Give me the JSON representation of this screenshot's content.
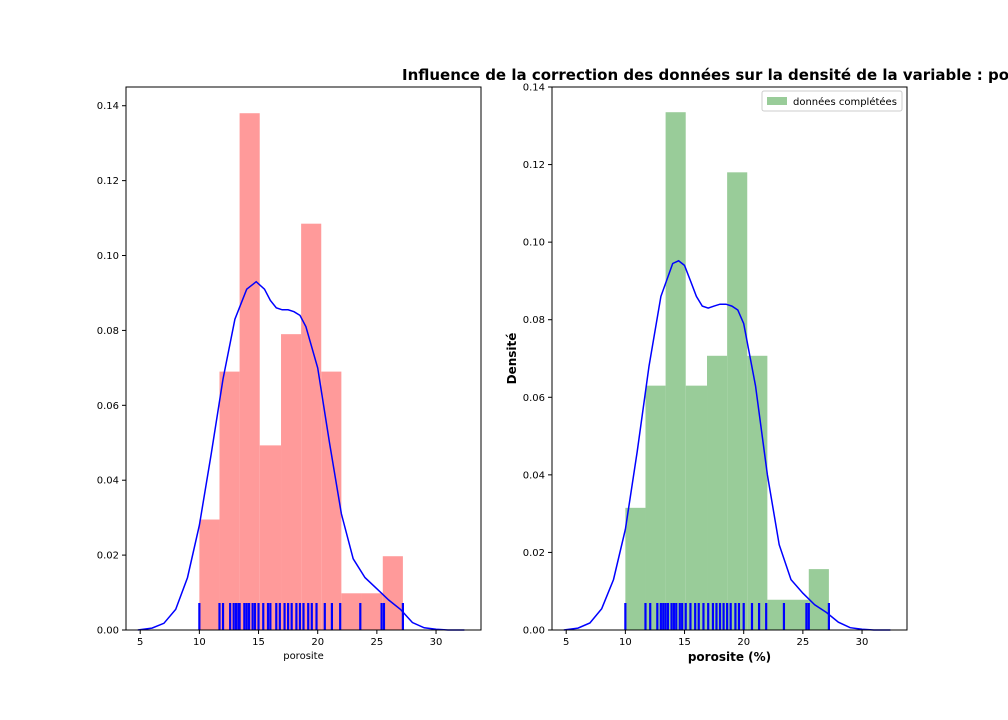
{
  "suptitle": "Influence de la correction des données sur la densité de la variable : po",
  "colors": {
    "rug": "#0000ff",
    "kde": "#0000ff",
    "hist_left": "#ff9a9a",
    "hist_right": "#99cc99",
    "axes": "#000000"
  },
  "chart_data": [
    {
      "type": "histogram+kde+rug",
      "xlabel": "porosite",
      "ylabel": "",
      "xlim": [
        3.8,
        33.8
      ],
      "ylim": [
        0,
        0.145
      ],
      "xticks": [
        "5",
        "10",
        "15",
        "20",
        "25",
        "30"
      ],
      "yticks": [
        "0.00",
        "0.02",
        "0.04",
        "0.06",
        "0.08",
        "0.10",
        "0.12",
        "0.14"
      ],
      "bins": [
        {
          "x0": 10.0,
          "x1": 11.7,
          "value": 0.0295
        },
        {
          "x0": 11.7,
          "x1": 13.4,
          "value": 0.069
        },
        {
          "x0": 13.4,
          "x1": 15.1,
          "value": 0.138
        },
        {
          "x0": 15.1,
          "x1": 16.9,
          "value": 0.0493
        },
        {
          "x0": 16.9,
          "x1": 18.6,
          "value": 0.079
        },
        {
          "x0": 18.6,
          "x1": 20.3,
          "value": 0.1085
        },
        {
          "x0": 20.3,
          "x1": 22.0,
          "value": 0.069
        },
        {
          "x0": 22.0,
          "x1": 23.7,
          "value": 0.0098
        },
        {
          "x0": 23.7,
          "x1": 25.5,
          "value": 0.0098
        },
        {
          "x0": 25.5,
          "x1": 27.2,
          "value": 0.0197
        }
      ],
      "kde": {
        "x": [
          4.8,
          6,
          7,
          8,
          9,
          10,
          11,
          12,
          13,
          14,
          14.8,
          15.5,
          16,
          16.5,
          17,
          17.5,
          18,
          18.5,
          19,
          20,
          21,
          22,
          23,
          24,
          25,
          26,
          27,
          28,
          29,
          30,
          31,
          32.4
        ],
        "y": [
          0.0,
          0.0005,
          0.0018,
          0.0055,
          0.014,
          0.028,
          0.047,
          0.067,
          0.083,
          0.091,
          0.093,
          0.091,
          0.088,
          0.086,
          0.0855,
          0.0855,
          0.085,
          0.084,
          0.081,
          0.07,
          0.05,
          0.031,
          0.019,
          0.014,
          0.011,
          0.008,
          0.0055,
          0.002,
          0.0006,
          0.0002,
          0.0,
          0.0
        ]
      },
      "rug": [
        10.0,
        11.7,
        12.0,
        12.6,
        12.9,
        13.1,
        13.3,
        13.4,
        13.8,
        14.0,
        14.2,
        14.5,
        14.7,
        15.0,
        15.4,
        15.8,
        16.0,
        16.5,
        16.8,
        17.2,
        17.5,
        17.8,
        18.2,
        18.5,
        18.8,
        19.2,
        19.5,
        19.9,
        20.6,
        21.2,
        21.9,
        23.6,
        25.4,
        25.6,
        27.2
      ],
      "legend": null
    },
    {
      "type": "histogram+kde+rug",
      "xlabel": "porosite (%)",
      "ylabel": "Densité",
      "xlim": [
        3.8,
        33.8
      ],
      "ylim": [
        0,
        0.14
      ],
      "xticks": [
        "5",
        "10",
        "15",
        "20",
        "25",
        "30"
      ],
      "yticks": [
        "0.00",
        "0.02",
        "0.04",
        "0.06",
        "0.08",
        "0.10",
        "0.12",
        "0.14"
      ],
      "bins": [
        {
          "x0": 10.0,
          "x1": 11.7,
          "value": 0.0315
        },
        {
          "x0": 11.7,
          "x1": 13.4,
          "value": 0.063
        },
        {
          "x0": 13.4,
          "x1": 15.1,
          "value": 0.1335
        },
        {
          "x0": 15.1,
          "x1": 16.9,
          "value": 0.063
        },
        {
          "x0": 16.9,
          "x1": 18.6,
          "value": 0.0707
        },
        {
          "x0": 18.6,
          "x1": 20.3,
          "value": 0.118
        },
        {
          "x0": 20.3,
          "x1": 22.0,
          "value": 0.0707
        },
        {
          "x0": 22.0,
          "x1": 23.7,
          "value": 0.0078
        },
        {
          "x0": 23.7,
          "x1": 25.5,
          "value": 0.0078
        },
        {
          "x0": 25.5,
          "x1": 27.2,
          "value": 0.0157
        }
      ],
      "kde": {
        "x": [
          4.8,
          6,
          7,
          8,
          9,
          10,
          11,
          12,
          13,
          14,
          14.5,
          15,
          15.5,
          16,
          16.5,
          17,
          17.5,
          18,
          18.5,
          19,
          19.5,
          20,
          21,
          22,
          23,
          24,
          25,
          26,
          27,
          28,
          29,
          30,
          31,
          32.4
        ],
        "y": [
          0.0,
          0.0005,
          0.0018,
          0.0055,
          0.013,
          0.026,
          0.046,
          0.068,
          0.086,
          0.0945,
          0.0952,
          0.094,
          0.09,
          0.086,
          0.0835,
          0.083,
          0.0835,
          0.084,
          0.084,
          0.0835,
          0.0825,
          0.079,
          0.063,
          0.04,
          0.022,
          0.013,
          0.0095,
          0.0065,
          0.0045,
          0.002,
          0.0006,
          0.0002,
          0.0,
          0.0
        ]
      },
      "rug": [
        10.0,
        11.7,
        12.1,
        12.7,
        13.0,
        13.2,
        13.4,
        13.6,
        13.9,
        14.1,
        14.3,
        14.6,
        14.8,
        15.1,
        15.5,
        15.9,
        16.2,
        16.6,
        17.0,
        17.4,
        17.7,
        18.0,
        18.3,
        18.6,
        18.9,
        19.3,
        19.6,
        20.0,
        20.7,
        21.3,
        21.9,
        23.4,
        25.3,
        25.5,
        27.2
      ],
      "legend": {
        "label": "données complétées",
        "placement": "top-right"
      }
    }
  ]
}
